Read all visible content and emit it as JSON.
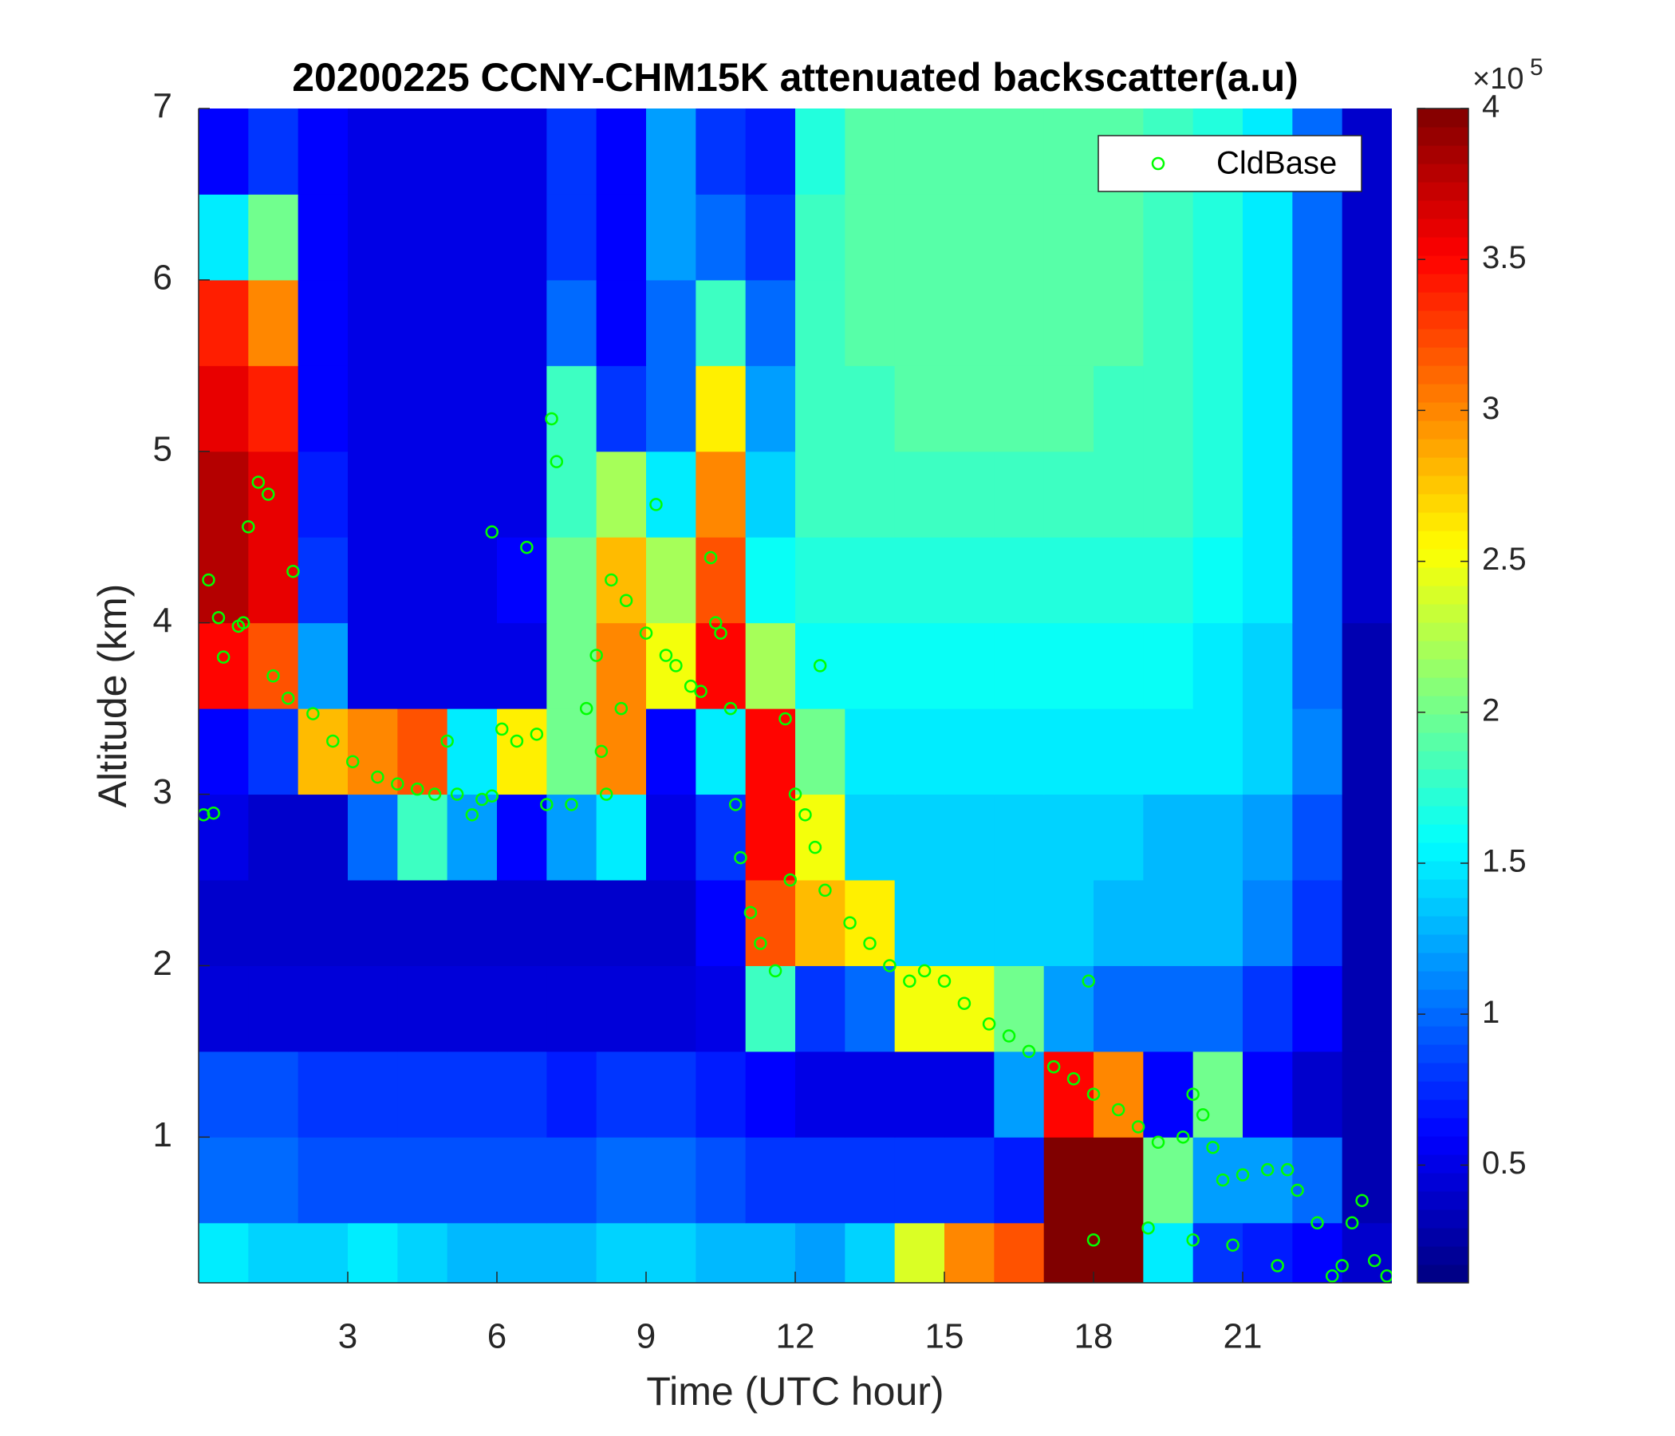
{
  "chart_data": {
    "type": "heatmap",
    "title": "20200225 CCNY-CHM15K attenuated backscatter(a.u)",
    "x_label": "Time (UTC hour)",
    "y_label": "Altitude (km)",
    "xlim": [
      0,
      24
    ],
    "xticks": [
      3,
      6,
      9,
      12,
      15,
      18,
      21
    ],
    "ylim": [
      0.15,
      7
    ],
    "yticks": [
      1,
      2,
      3,
      4,
      5,
      6,
      7
    ],
    "colormap": "jet",
    "clim": [
      0.11,
      4
    ],
    "colorbar_ticks": [
      0.5,
      1,
      1.5,
      2,
      2.5,
      3,
      3.5,
      4
    ],
    "colorbar_multiplier": "×10",
    "colorbar_power": "5",
    "z_x": [
      0.5,
      1.5,
      2.5,
      3.5,
      4.5,
      5.5,
      6.5,
      7.5,
      8.5,
      9.5,
      10.5,
      11.5,
      12.5,
      13.5,
      14.5,
      15.5,
      16.5,
      17.5,
      18.5,
      19.5,
      20.5,
      21.5,
      22.5,
      23.5
    ],
    "z_y": [
      0.25,
      0.75,
      1.25,
      1.75,
      2.25,
      2.75,
      3.25,
      3.75,
      4.25,
      4.75,
      5.25,
      5.75,
      6.25,
      6.75
    ],
    "z": [
      [
        1.5,
        1.4,
        1.4,
        1.5,
        1.4,
        1.3,
        1.3,
        1.3,
        1.4,
        1.4,
        1.3,
        1.3,
        1.2,
        1.4,
        2.4,
        3.0,
        3.2,
        4,
        4,
        1.5,
        0.8,
        0.7,
        0.6,
        0.4
      ],
      [
        1.0,
        1.0,
        0.9,
        0.9,
        0.9,
        0.9,
        0.9,
        0.9,
        1.0,
        1.0,
        0.9,
        0.8,
        0.8,
        0.8,
        0.8,
        0.8,
        0.7,
        4,
        4,
        2.0,
        1.2,
        1.2,
        1.0,
        0.3
      ],
      [
        0.9,
        0.9,
        0.8,
        0.8,
        0.8,
        0.8,
        0.8,
        0.7,
        0.8,
        0.8,
        0.7,
        0.6,
        0.5,
        0.5,
        0.5,
        0.5,
        1.2,
        3.5,
        3.0,
        0.6,
        2.0,
        0.6,
        0.4,
        0.3
      ],
      [
        0.45,
        0.45,
        0.45,
        0.45,
        0.45,
        0.45,
        0.45,
        0.45,
        0.45,
        0.45,
        0.5,
        1.8,
        0.8,
        1.0,
        2.5,
        2.5,
        2.0,
        1.2,
        1.0,
        1.0,
        1.0,
        0.8,
        0.6,
        0.3
      ],
      [
        0.4,
        0.4,
        0.4,
        0.4,
        0.4,
        0.4,
        0.4,
        0.4,
        0.4,
        0.4,
        0.6,
        3.2,
        2.8,
        2.6,
        1.4,
        1.4,
        1.4,
        1.4,
        1.3,
        1.3,
        1.3,
        1.1,
        0.8,
        0.3
      ],
      [
        0.5,
        0.4,
        0.4,
        1.0,
        1.8,
        1.2,
        0.6,
        1.2,
        1.5,
        0.5,
        0.8,
        3.5,
        2.5,
        1.4,
        1.4,
        1.4,
        1.4,
        1.4,
        1.4,
        1.3,
        1.3,
        1.2,
        0.9,
        0.3
      ],
      [
        0.6,
        0.8,
        2.8,
        3.0,
        3.2,
        1.5,
        2.6,
        2.0,
        3.0,
        0.6,
        1.5,
        3.5,
        2.0,
        1.5,
        1.5,
        1.5,
        1.5,
        1.5,
        1.5,
        1.5,
        1.5,
        1.4,
        1.1,
        0.3
      ],
      [
        3.5,
        3.2,
        1.2,
        0.5,
        0.5,
        0.5,
        0.5,
        2.0,
        3.0,
        2.5,
        3.5,
        2.2,
        1.6,
        1.6,
        1.6,
        1.6,
        1.6,
        1.6,
        1.6,
        1.6,
        1.5,
        1.4,
        1.0,
        0.3
      ],
      [
        3.8,
        3.6,
        0.8,
        0.5,
        0.5,
        0.5,
        0.6,
        2.0,
        2.8,
        2.2,
        3.2,
        1.6,
        1.7,
        1.7,
        1.7,
        1.7,
        1.7,
        1.7,
        1.7,
        1.7,
        1.6,
        1.5,
        1.0,
        0.4
      ],
      [
        3.8,
        3.6,
        0.7,
        0.5,
        0.5,
        0.5,
        0.5,
        1.8,
        2.2,
        1.5,
        3.0,
        1.4,
        1.8,
        1.8,
        1.8,
        1.8,
        1.8,
        1.8,
        1.8,
        1.8,
        1.7,
        1.5,
        1.0,
        0.4
      ],
      [
        3.6,
        3.4,
        0.6,
        0.5,
        0.5,
        0.5,
        0.5,
        1.8,
        0.8,
        1.0,
        2.6,
        1.2,
        1.8,
        1.8,
        1.9,
        1.9,
        1.9,
        1.9,
        1.8,
        1.8,
        1.7,
        1.5,
        1.0,
        0.4
      ],
      [
        3.4,
        3.0,
        0.6,
        0.5,
        0.5,
        0.5,
        0.5,
        1.0,
        0.6,
        1.0,
        1.8,
        1.0,
        1.8,
        1.9,
        1.9,
        1.9,
        1.9,
        1.9,
        1.9,
        1.8,
        1.7,
        1.5,
        1.0,
        0.4
      ],
      [
        1.5,
        2.0,
        0.6,
        0.5,
        0.5,
        0.5,
        0.5,
        0.8,
        0.6,
        1.2,
        1.0,
        0.8,
        1.8,
        1.9,
        1.9,
        1.9,
        1.9,
        1.9,
        1.9,
        1.8,
        1.7,
        1.5,
        1.0,
        0.4
      ],
      [
        0.6,
        0.8,
        0.6,
        0.5,
        0.5,
        0.5,
        0.5,
        0.8,
        0.6,
        1.2,
        0.8,
        0.7,
        1.7,
        1.9,
        1.9,
        1.9,
        1.9,
        1.9,
        1.9,
        1.8,
        1.7,
        1.5,
        1.0,
        0.4
      ]
    ],
    "series": [
      {
        "name": "CldBase",
        "color": "#00ff00",
        "x": [
          0.1,
          0.3,
          0.2,
          0.4,
          0.5,
          0.8,
          0.9,
          1.0,
          1.2,
          1.4,
          1.9,
          1.5,
          1.8,
          2.3,
          2.7,
          3.1,
          3.6,
          4.0,
          4.4,
          4.75,
          5.0,
          5.2,
          5.5,
          5.7,
          5.9,
          6.1,
          6.4,
          6.8,
          6.6,
          5.9,
          7.0,
          7.1,
          7.2,
          7.5,
          7.8,
          8.0,
          8.1,
          8.2,
          8.3,
          8.5,
          8.6,
          9.0,
          9.2,
          9.4,
          9.6,
          9.9,
          10.1,
          10.3,
          10.4,
          10.5,
          10.7,
          10.8,
          10.9,
          11.1,
          11.3,
          11.6,
          11.8,
          11.9,
          12.0,
          12.2,
          12.4,
          12.5,
          12.6,
          13.1,
          13.5,
          13.9,
          14.3,
          14.6,
          15.0,
          15.4,
          15.9,
          16.3,
          16.7,
          17.2,
          17.6,
          18.0,
          18.5,
          18.9,
          19.3,
          19.8,
          20.0,
          20.2,
          20.4,
          20.6,
          21.0,
          21.5,
          21.9,
          22.1,
          22.5,
          22.8,
          23.0,
          23.2,
          23.4,
          23.65,
          23.9,
          18.0,
          19.1,
          20.0,
          20.8,
          21.7,
          17.9
        ],
        "y": [
          2.88,
          2.89,
          4.25,
          4.03,
          3.8,
          3.98,
          4.0,
          4.56,
          4.82,
          4.75,
          4.3,
          3.69,
          3.56,
          3.47,
          3.31,
          3.19,
          3.1,
          3.06,
          3.03,
          3.0,
          3.31,
          3.0,
          2.88,
          2.97,
          2.99,
          3.38,
          3.31,
          3.35,
          4.44,
          4.53,
          2.94,
          5.19,
          4.94,
          2.94,
          3.5,
          3.81,
          3.25,
          3.0,
          4.25,
          3.5,
          4.13,
          3.94,
          4.69,
          3.81,
          3.75,
          3.63,
          3.6,
          4.38,
          4.0,
          3.94,
          3.5,
          2.94,
          2.63,
          2.31,
          2.13,
          1.97,
          3.44,
          2.5,
          3.0,
          2.88,
          2.69,
          3.75,
          2.44,
          2.25,
          2.13,
          2.0,
          1.91,
          1.97,
          1.91,
          1.78,
          1.66,
          1.59,
          1.5,
          1.41,
          1.34,
          1.25,
          1.16,
          1.06,
          0.97,
          1.0,
          1.25,
          1.13,
          0.94,
          0.75,
          0.78,
          0.81,
          0.81,
          0.69,
          0.5,
          0.19,
          0.25,
          0.5,
          0.63,
          0.28,
          0.19,
          0.4,
          0.47,
          0.4,
          0.37,
          0.25,
          1.91
        ]
      }
    ],
    "legend": "upper-right"
  }
}
